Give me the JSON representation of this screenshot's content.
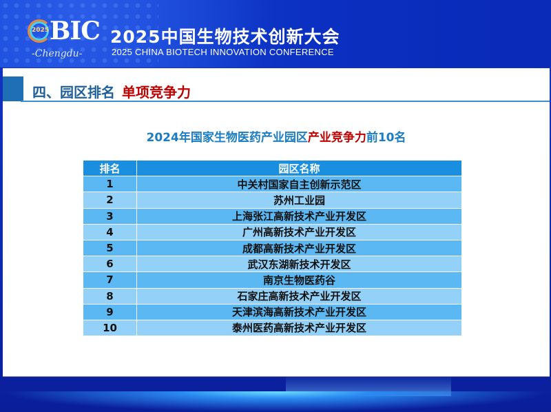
{
  "header": {
    "logo": {
      "year": "2025",
      "mark": "BIC",
      "city": "-Chengdu-"
    },
    "title_cn": "2025中国生物技术创新大会",
    "title_en": "2025 CHINA BIOTECH INNOVATION CONFERENCE"
  },
  "section": {
    "title": "四、园区排名",
    "subtitle": "单项竞争力"
  },
  "table": {
    "title_part1": "2024年国家生物医药产业园区",
    "title_part2": "产业竞争力",
    "title_part3": "前10名",
    "columns": [
      "排名",
      "园区名称"
    ],
    "rows": [
      {
        "rank": "1",
        "name": "中关村国家自主创新示范区"
      },
      {
        "rank": "2",
        "name": "苏州工业园"
      },
      {
        "rank": "3",
        "name": "上海张江高新技术产业开发区"
      },
      {
        "rank": "4",
        "name": "广州高新技术产业开发区"
      },
      {
        "rank": "5",
        "name": "成都高新技术产业开发区"
      },
      {
        "rank": "6",
        "name": "武汉东湖新技术开发区"
      },
      {
        "rank": "7",
        "name": "南京生物医药谷"
      },
      {
        "rank": "8",
        "name": "石家庄高新技术产业开发区"
      },
      {
        "rank": "9",
        "name": "天津滨海高新技术产业开发区"
      },
      {
        "rank": "10",
        "name": "泰州医药高新技术产业开发区"
      }
    ]
  },
  "colors": {
    "header_blue": "#1648d8",
    "accent_red": "#c00000",
    "table_header": "#1a8fe0",
    "row_dark": "#5cb8f2",
    "row_light": "#93d1f8"
  }
}
